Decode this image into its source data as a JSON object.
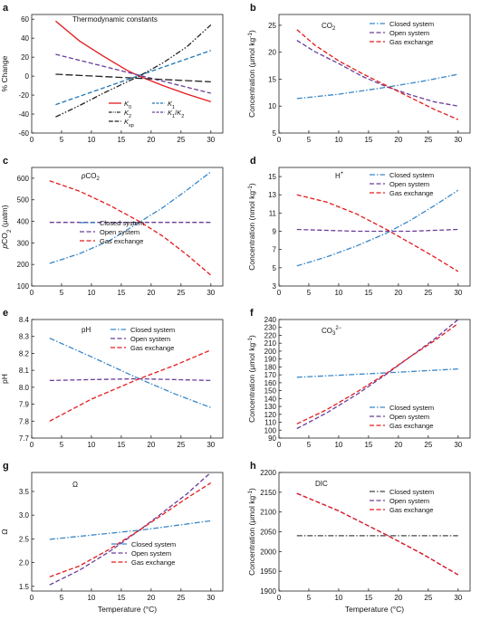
{
  "figure": {
    "x_axis_label": "Temperature (°C)",
    "legend_labels": {
      "closed": "Closed system",
      "open": "Open system",
      "gas": "Gas exchange"
    }
  },
  "chart_data": [
    {
      "panel": "a",
      "type": "line",
      "title": "Thermodynamic constants",
      "xlabel": "",
      "ylabel": "% Change",
      "xlim": [
        0,
        32
      ],
      "ylim": [
        -60,
        65
      ],
      "xticks": [
        0,
        5,
        10,
        15,
        20,
        25,
        30
      ],
      "yticks": [
        -60,
        -40,
        -20,
        0,
        20,
        40,
        60
      ],
      "legend_columns": 2,
      "series": [
        {
          "name": "K0",
          "color": "#e41a1c",
          "dash": "solid",
          "x": [
            4,
            8,
            12,
            16,
            18,
            22,
            26,
            30
          ],
          "y": [
            58,
            37,
            21,
            6,
            0,
            -10,
            -19,
            -27
          ]
        },
        {
          "name": "K1",
          "color": "#1f77b4",
          "dash": "dash",
          "x": [
            4,
            30
          ],
          "y": [
            -30,
            27
          ]
        },
        {
          "name": "K2",
          "color": "#222222",
          "dash": "dashdotdot",
          "x": [
            4,
            8,
            12,
            16,
            18,
            22,
            26,
            30
          ],
          "y": [
            -43,
            -31,
            -18,
            -6,
            0,
            14,
            31,
            54
          ]
        },
        {
          "name": "K1/K2",
          "color": "#6a3d9a",
          "dash": "dash",
          "x": [
            4,
            30
          ],
          "y": [
            23,
            -18
          ]
        },
        {
          "name": "Ksp",
          "color": "#222222",
          "dash": "longdash",
          "x": [
            4,
            30
          ],
          "y": [
            2,
            -6
          ]
        }
      ],
      "legend_entries": [
        {
          "label": "K",
          "sub": "0",
          "sup": ""
        },
        {
          "label": "K",
          "sub": "1",
          "sup": ""
        },
        {
          "label": "K",
          "sub": "2",
          "sup": ""
        },
        {
          "label": "K",
          "sub": "1",
          "sup": "",
          "extra": "/K",
          "extra_sub": "2"
        },
        {
          "label": "K",
          "sub": "sp",
          "sup": ""
        }
      ]
    },
    {
      "panel": "b",
      "type": "line",
      "title": "CO",
      "title_sub": "2",
      "ylabel": "Concentration (μmol kg",
      "ylabel_sup": "-1",
      "ylabel_end": ")",
      "xlim": [
        0,
        32
      ],
      "ylim": [
        5,
        27
      ],
      "xticks": [
        0,
        5,
        10,
        15,
        20,
        25,
        30
      ],
      "yticks": [
        5,
        10,
        15,
        20,
        25
      ],
      "series": [
        {
          "name": "Closed system",
          "color": "#3a87c8",
          "dash": "dashdot",
          "x": [
            3,
            10,
            18,
            24,
            30
          ],
          "y": [
            11.4,
            12.2,
            13.5,
            14.6,
            15.9
          ]
        },
        {
          "name": "Open system",
          "color": "#6a3d9a",
          "dash": "dash",
          "x": [
            3,
            6,
            10,
            14,
            18,
            22,
            26,
            30
          ],
          "y": [
            22.2,
            20.1,
            17.9,
            15.5,
            13.6,
            12.1,
            10.8,
            10
          ]
        },
        {
          "name": "Gas exchange",
          "color": "#e41a1c",
          "dash": "dash",
          "x": [
            3,
            6,
            10,
            14,
            18,
            22,
            26,
            30
          ],
          "y": [
            24.2,
            21.3,
            18.4,
            16,
            13.8,
            11.6,
            9.4,
            7.5
          ]
        }
      ]
    },
    {
      "panel": "c",
      "type": "line",
      "title": "pCO",
      "title_sub": "2",
      "title_italic_first": true,
      "ylabel": "pCO",
      "ylabel_sub": "2",
      "ylabel_end": " (μatm)",
      "xlim": [
        0,
        32
      ],
      "ylim": [
        100,
        650
      ],
      "xticks": [
        0,
        5,
        10,
        15,
        20,
        25,
        30
      ],
      "yticks": [
        100,
        200,
        300,
        400,
        500,
        600
      ],
      "series": [
        {
          "name": "Closed system",
          "color": "#3a87c8",
          "dash": "dashdot",
          "x": [
            3,
            8,
            13,
            18,
            22,
            26,
            30
          ],
          "y": [
            205,
            250,
            310,
            395,
            465,
            545,
            630
          ]
        },
        {
          "name": "Open system",
          "color": "#6a3d9a",
          "dash": "dash",
          "x": [
            3,
            30
          ],
          "y": [
            395,
            395
          ]
        },
        {
          "name": "Gas exchange",
          "color": "#e41a1c",
          "dash": "dash",
          "x": [
            3,
            8,
            13,
            18,
            22,
            26,
            30
          ],
          "y": [
            588,
            540,
            475,
            400,
            330,
            245,
            150
          ]
        }
      ]
    },
    {
      "panel": "d",
      "type": "line",
      "title": "H",
      "title_sup": "+",
      "ylabel": "Concentration (nmol kg",
      "ylabel_sup": "-1",
      "ylabel_end": ")",
      "xlim": [
        0,
        32
      ],
      "ylim": [
        3,
        16
      ],
      "xticks": [
        0,
        5,
        10,
        15,
        20,
        25,
        30
      ],
      "yticks": [
        3,
        5,
        7,
        9,
        11,
        13,
        15
      ],
      "series": [
        {
          "name": "Closed system",
          "color": "#3a87c8",
          "dash": "dashdot",
          "x": [
            3,
            8,
            13,
            18,
            22,
            26,
            30
          ],
          "y": [
            5.2,
            6.2,
            7.4,
            8.8,
            10.2,
            11.8,
            13.5
          ]
        },
        {
          "name": "Open system",
          "color": "#6a3d9a",
          "dash": "dash",
          "x": [
            3,
            8,
            13,
            18,
            22,
            26,
            30
          ],
          "y": [
            9.2,
            9.1,
            9.0,
            9.0,
            9.0,
            9.1,
            9.2
          ]
        },
        {
          "name": "Gas exchange",
          "color": "#e41a1c",
          "dash": "dash",
          "x": [
            3,
            8,
            13,
            18,
            22,
            26,
            30
          ],
          "y": [
            13,
            12.2,
            10.9,
            9.2,
            7.7,
            6.2,
            4.6
          ]
        }
      ]
    },
    {
      "panel": "e",
      "type": "line",
      "title": "pH",
      "ylabel": "pH",
      "xlim": [
        0,
        32
      ],
      "ylim": [
        7.7,
        8.4
      ],
      "xticks": [
        0,
        5,
        10,
        15,
        20,
        25,
        30
      ],
      "yticks": [
        7.7,
        7.8,
        7.9,
        8.0,
        8.1,
        8.2,
        8.3,
        8.4
      ],
      "ytick_decimals": 1,
      "series": [
        {
          "name": "Closed system",
          "color": "#3a87c8",
          "dash": "dashdot",
          "x": [
            3,
            10,
            18,
            24,
            30
          ],
          "y": [
            8.29,
            8.18,
            8.05,
            7.96,
            7.88
          ]
        },
        {
          "name": "Open system",
          "color": "#6a3d9a",
          "dash": "dash",
          "x": [
            3,
            10,
            18,
            24,
            30
          ],
          "y": [
            8.04,
            8.045,
            8.05,
            8.045,
            8.04
          ]
        },
        {
          "name": "Gas exchange",
          "color": "#e41a1c",
          "dash": "dash",
          "x": [
            3,
            10,
            18,
            24,
            30
          ],
          "y": [
            7.8,
            7.93,
            8.05,
            8.13,
            8.22
          ]
        }
      ]
    },
    {
      "panel": "f",
      "type": "line",
      "title": "CO",
      "title_sub": "3",
      "title_sup": "2−",
      "ylabel": "Concentration (μmol kg",
      "ylabel_sup": "-1",
      "ylabel_end": ")",
      "xlim": [
        0,
        32
      ],
      "ylim": [
        90,
        240
      ],
      "xticks": [
        0,
        5,
        10,
        15,
        20,
        25,
        30
      ],
      "yticks": [
        90,
        100,
        110,
        120,
        130,
        140,
        150,
        160,
        170,
        180,
        190,
        200,
        210,
        220,
        230,
        240
      ],
      "series": [
        {
          "name": "Closed system",
          "color": "#3a87c8",
          "dash": "dashdot",
          "x": [
            3,
            10,
            18,
            24,
            30
          ],
          "y": [
            167,
            169.5,
            172.5,
            175,
            177.5
          ]
        },
        {
          "name": "Open system",
          "color": "#6a3d9a",
          "dash": "dash",
          "x": [
            3,
            8,
            13,
            18,
            22,
            26,
            30
          ],
          "y": [
            102,
            122,
            145,
            171,
            193,
            215,
            240
          ]
        },
        {
          "name": "Gas exchange",
          "color": "#e41a1c",
          "dash": "dash",
          "x": [
            3,
            8,
            13,
            18,
            22,
            26,
            30
          ],
          "y": [
            108,
            126,
            148,
            172,
            193,
            213,
            235
          ]
        }
      ]
    },
    {
      "panel": "g",
      "type": "line",
      "title": "Ω",
      "ylabel": "Ω",
      "xlim": [
        0,
        32
      ],
      "ylim": [
        1.4,
        3.9
      ],
      "xticks": [
        0,
        5,
        10,
        15,
        20,
        25,
        30
      ],
      "yticks": [
        1.5,
        2.0,
        2.5,
        3.0,
        3.5
      ],
      "ytick_decimals": 1,
      "series": [
        {
          "name": "Closed system",
          "color": "#3a87c8",
          "dash": "dashdot",
          "x": [
            3,
            10,
            18,
            24,
            30
          ],
          "y": [
            2.49,
            2.58,
            2.68,
            2.78,
            2.88
          ]
        },
        {
          "name": "Open system",
          "color": "#6a3d9a",
          "dash": "dash",
          "x": [
            3,
            8,
            13,
            18,
            22,
            26,
            30
          ],
          "y": [
            1.53,
            1.84,
            2.23,
            2.68,
            3.06,
            3.45,
            3.9
          ]
        },
        {
          "name": "Gas exchange",
          "color": "#e41a1c",
          "dash": "dash",
          "x": [
            3,
            8,
            13,
            18,
            22,
            26,
            30
          ],
          "y": [
            1.7,
            1.93,
            2.28,
            2.68,
            3.02,
            3.36,
            3.68
          ]
        }
      ]
    },
    {
      "panel": "h",
      "type": "line",
      "title": "DIC",
      "ylabel": "Concentration (μmol kg",
      "ylabel_sup": "-1",
      "ylabel_end": ")",
      "xlim": [
        0,
        32
      ],
      "ylim": [
        1900,
        2200
      ],
      "xticks": [
        0,
        5,
        10,
        15,
        20,
        25,
        30
      ],
      "yticks": [
        1900,
        1950,
        2000,
        2050,
        2100,
        2150,
        2200
      ],
      "series": [
        {
          "name": "Closed system",
          "color": "#444444",
          "dash": "dashdot",
          "x": [
            3,
            30
          ],
          "y": [
            2040,
            2040
          ]
        },
        {
          "name": "Open system",
          "color": "#6a3d9a",
          "dash": "dash",
          "x": [
            3,
            10,
            18,
            24,
            30
          ],
          "y": [
            2147,
            2103,
            2042,
            1994,
            1941
          ]
        },
        {
          "name": "Gas exchange",
          "color": "#e41a1c",
          "dash": "dash",
          "x": [
            3,
            10,
            18,
            24,
            30
          ],
          "y": [
            2147,
            2103,
            2042,
            1994,
            1941
          ]
        }
      ]
    }
  ]
}
